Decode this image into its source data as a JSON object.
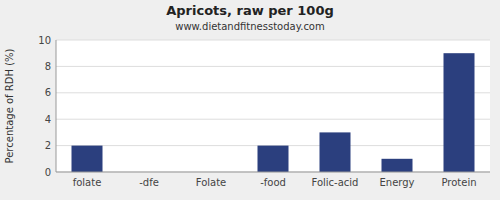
{
  "chart_data": {
    "type": "bar",
    "title": "Apricots, raw per 100g",
    "subtitle": "www.dietandfitnesstoday.com",
    "ylabel": "Percentage of RDH (%)",
    "categories": [
      "folate",
      "-dfe",
      "Folate",
      "-food",
      "Folic-acid",
      "Energy",
      "Protein"
    ],
    "values": [
      2,
      0,
      0,
      2,
      3,
      1,
      9
    ],
    "color": "#2b3f7e",
    "ylim": [
      0,
      10
    ],
    "yticks": [
      0,
      2,
      4,
      6,
      8,
      10
    ],
    "grid": true
  }
}
